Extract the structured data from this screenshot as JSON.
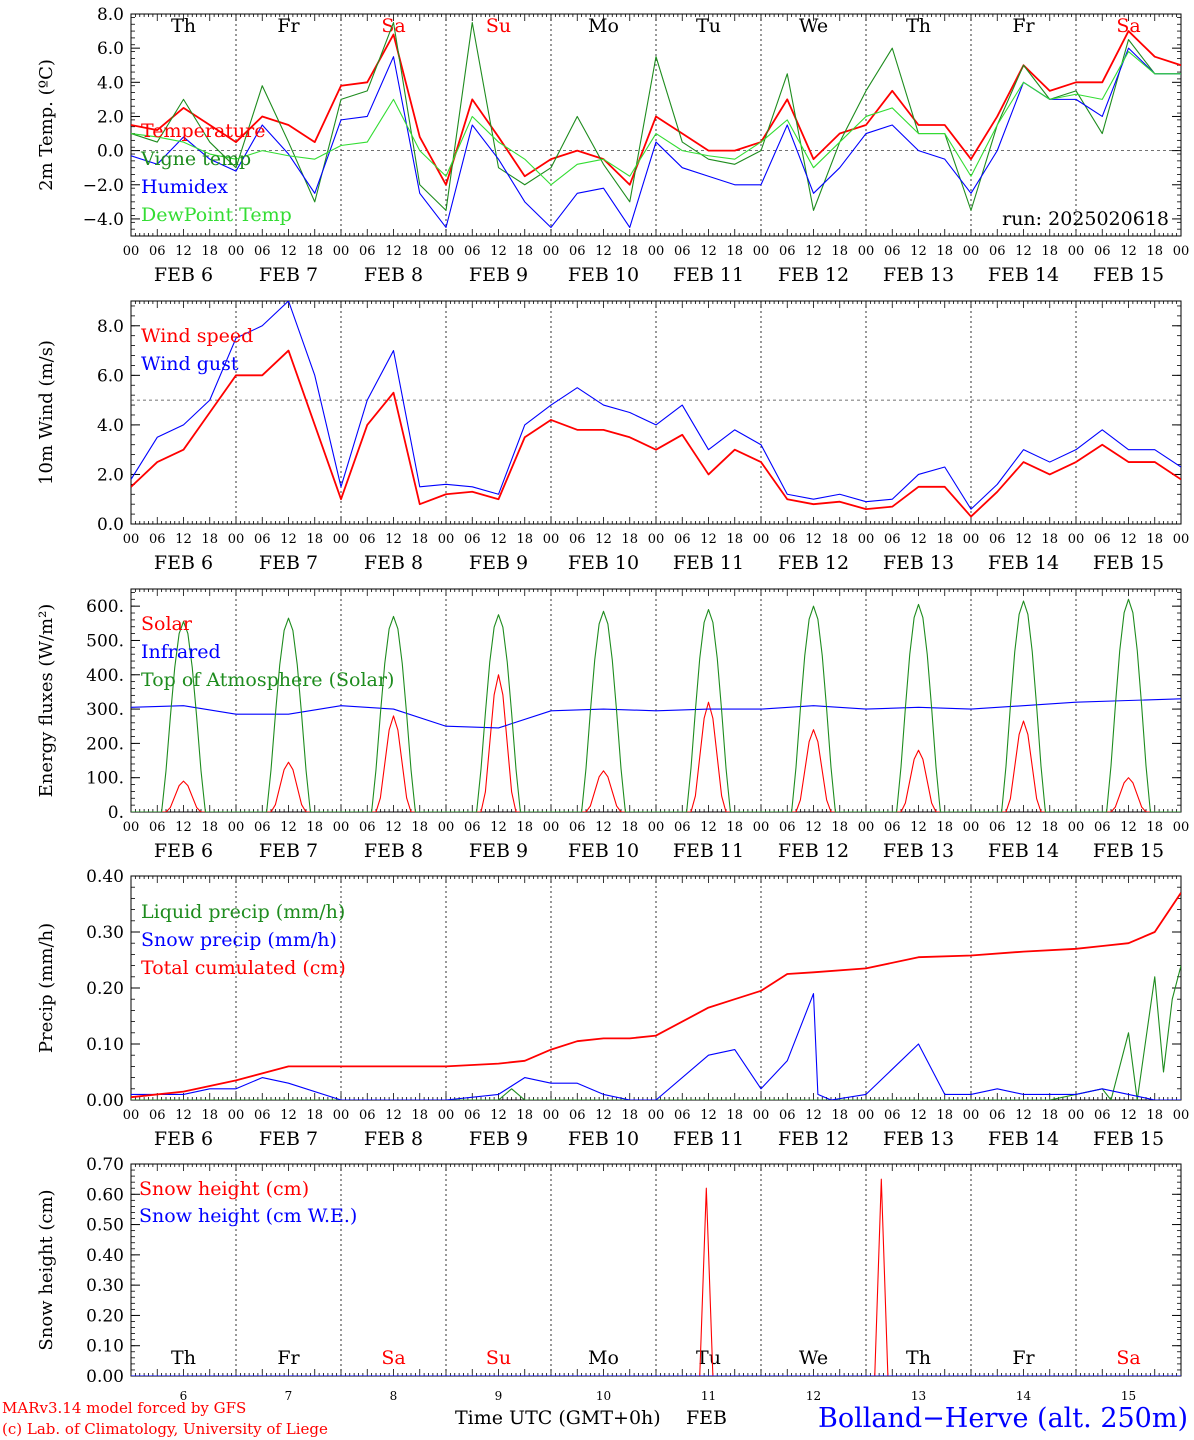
{
  "colors": {
    "red": "#ff0000",
    "green": "#1e8c1e",
    "blue": "#0000ff",
    "light_green": "#33dd33",
    "black": "#000000"
  },
  "days": {
    "top_names": [
      "Th",
      "Fr",
      "Sa",
      "Su",
      "Mo",
      "Tu",
      "We",
      "Th",
      "Fr",
      "Sa"
    ],
    "weekend_flags": [
      false,
      false,
      true,
      true,
      false,
      false,
      false,
      false,
      false,
      true
    ],
    "date_labels": [
      "FEB  6",
      "FEB  7",
      "FEB  8",
      "FEB  9",
      "FEB 10",
      "FEB 11",
      "FEB 12",
      "FEB 13",
      "FEB 14",
      "FEB 15"
    ],
    "day_numbers": [
      "6",
      "7",
      "8",
      "9",
      "10",
      "11",
      "12",
      "13",
      "14",
      "15"
    ],
    "hour_labels": [
      "00",
      "06",
      "12",
      "18"
    ],
    "final_hour_label": "00"
  },
  "footer": {
    "credit_line1": "MARv3.14 model forced by GFS",
    "credit_line2": "(c) Lab. of Climatology, University of Liege",
    "axis_title": "Time UTC (GMT+0h)",
    "month": "FEB",
    "station": "Bolland−Herve (alt. 250m)"
  },
  "chart_data": [
    {
      "type": "line",
      "ylabel": "2m Temp. (ºC)",
      "run_label": "run: 2025020618",
      "ylim": [
        -5,
        8
      ],
      "yticks": [
        8,
        6,
        4,
        2,
        0,
        -2,
        -4
      ],
      "ytick_labels": [
        "8.0",
        "6.0",
        "4.0",
        "2.0",
        "0.0",
        "−2.0",
        "−4.0"
      ],
      "ref_line": 0,
      "x_unit": "hours since FEB 6 00 UTC",
      "series": [
        {
          "name": "Temperature",
          "color": "red",
          "x": [
            0,
            6,
            12,
            18,
            24,
            30,
            36,
            42,
            48,
            54,
            60,
            66,
            72,
            78,
            84,
            90,
            96,
            102,
            108,
            114,
            120,
            126,
            132,
            138,
            144,
            150,
            156,
            162,
            168,
            174,
            180,
            186,
            192,
            198,
            204,
            210,
            216,
            222,
            228,
            234,
            240
          ],
          "values": [
            1.5,
            1.2,
            2.5,
            1.5,
            0.5,
            2.0,
            1.5,
            0.5,
            3.8,
            4.0,
            6.8,
            0.8,
            -2.0,
            3.0,
            0.8,
            -1.5,
            -0.5,
            0.0,
            -0.5,
            -2.0,
            2.0,
            1.0,
            0.0,
            0.0,
            0.5,
            3.0,
            -0.5,
            1.0,
            1.5,
            3.5,
            1.5,
            1.5,
            -0.5,
            2.0,
            5.0,
            3.5,
            4.0,
            4.0,
            7.0,
            5.5,
            5.0
          ]
        },
        {
          "name": "Vigne temp",
          "color": "green",
          "x": [
            0,
            6,
            12,
            18,
            24,
            30,
            36,
            42,
            48,
            54,
            60,
            66,
            72,
            78,
            84,
            90,
            96,
            102,
            108,
            114,
            120,
            126,
            132,
            138,
            144,
            150,
            156,
            162,
            168,
            174,
            180,
            186,
            192,
            198,
            204,
            210,
            216,
            222,
            228,
            234,
            240
          ],
          "values": [
            1.0,
            0.5,
            3.0,
            0.5,
            -1.0,
            3.8,
            0.5,
            -3.0,
            3.0,
            3.5,
            7.5,
            -2.0,
            -3.5,
            7.5,
            -1.0,
            -2.0,
            -1.0,
            2.0,
            -0.8,
            -3.0,
            5.5,
            0.5,
            -0.5,
            -0.8,
            0.0,
            4.5,
            -3.5,
            0.5,
            3.5,
            6.0,
            1.0,
            1.0,
            -3.5,
            1.5,
            5.0,
            3.0,
            3.5,
            1.0,
            6.5,
            4.5,
            4.5
          ]
        },
        {
          "name": "Humidex",
          "color": "blue",
          "x": [
            0,
            6,
            12,
            18,
            24,
            30,
            36,
            42,
            48,
            54,
            60,
            66,
            72,
            78,
            84,
            90,
            96,
            102,
            108,
            114,
            120,
            126,
            132,
            138,
            144,
            150,
            156,
            162,
            168,
            174,
            180,
            186,
            192,
            198,
            204,
            210,
            216,
            222,
            228,
            234,
            240
          ],
          "values": [
            -0.3,
            -0.8,
            0.8,
            -0.5,
            -1.2,
            1.5,
            -0.2,
            -2.5,
            1.8,
            2.0,
            5.5,
            -2.5,
            -4.5,
            1.5,
            -0.5,
            -3.0,
            -4.5,
            -2.5,
            -2.2,
            -4.5,
            0.5,
            -1.0,
            -1.5,
            -2.0,
            -2.0,
            1.5,
            -2.5,
            -1.0,
            1.0,
            1.5,
            0.0,
            -0.5,
            -2.5,
            0.0,
            4.0,
            3.0,
            3.0,
            2.0,
            6.0,
            4.5,
            4.5
          ]
        },
        {
          "name": "DewPoint Temp",
          "color": "light_green",
          "x": [
            0,
            6,
            12,
            18,
            24,
            30,
            36,
            42,
            48,
            54,
            60,
            66,
            72,
            78,
            84,
            90,
            96,
            102,
            108,
            114,
            120,
            126,
            132,
            138,
            144,
            150,
            156,
            162,
            168,
            174,
            180,
            186,
            192,
            198,
            204,
            210,
            216,
            222,
            228,
            234,
            240
          ],
          "values": [
            1.0,
            0.8,
            0.5,
            -0.2,
            -0.5,
            0.0,
            -0.3,
            -0.5,
            0.3,
            0.5,
            3.0,
            0.0,
            -1.5,
            2.0,
            0.5,
            -0.5,
            -2.0,
            -0.8,
            -0.5,
            -1.5,
            1.0,
            0.0,
            -0.3,
            -0.5,
            0.5,
            1.8,
            -1.0,
            0.5,
            2.0,
            2.5,
            1.0,
            1.0,
            -1.5,
            1.5,
            4.0,
            3.0,
            3.3,
            3.0,
            5.8,
            4.5,
            4.5
          ]
        }
      ]
    },
    {
      "type": "line",
      "ylabel": "10m Wind (m/s)",
      "ylim": [
        0,
        9
      ],
      "yticks": [
        8,
        6,
        4,
        2,
        0
      ],
      "ytick_labels": [
        "8.0",
        "6.0",
        "4.0",
        "2.0",
        "0.0"
      ],
      "ref_line": 5,
      "x_unit": "hours since FEB 6 00 UTC",
      "series": [
        {
          "name": "Wind speed",
          "color": "red",
          "x": [
            0,
            6,
            12,
            18,
            24,
            30,
            36,
            42,
            48,
            54,
            60,
            66,
            72,
            78,
            84,
            90,
            96,
            102,
            108,
            114,
            120,
            126,
            132,
            138,
            144,
            150,
            156,
            162,
            168,
            174,
            180,
            186,
            192,
            198,
            204,
            210,
            216,
            222,
            228,
            234,
            240
          ],
          "values": [
            1.5,
            2.5,
            3.0,
            4.5,
            6.0,
            6.0,
            7.0,
            4.0,
            1.0,
            4.0,
            5.3,
            0.8,
            1.2,
            1.3,
            1.0,
            3.5,
            4.2,
            3.8,
            3.8,
            3.5,
            3.0,
            3.6,
            2.0,
            3.0,
            2.5,
            1.0,
            0.8,
            0.9,
            0.6,
            0.7,
            1.5,
            1.5,
            0.3,
            1.3,
            2.5,
            2.0,
            2.5,
            3.2,
            2.5,
            2.5,
            1.8
          ]
        },
        {
          "name": "Wind gust",
          "color": "blue",
          "x": [
            0,
            6,
            12,
            18,
            24,
            30,
            36,
            42,
            48,
            54,
            60,
            66,
            72,
            78,
            84,
            90,
            96,
            102,
            108,
            114,
            120,
            126,
            132,
            138,
            144,
            150,
            156,
            162,
            168,
            174,
            180,
            186,
            192,
            198,
            204,
            210,
            216,
            222,
            228,
            234,
            240
          ],
          "values": [
            1.8,
            3.5,
            4.0,
            5.0,
            7.5,
            8.0,
            9.0,
            6.0,
            1.5,
            5.0,
            7.0,
            1.5,
            1.6,
            1.5,
            1.2,
            4.0,
            4.8,
            5.5,
            4.8,
            4.5,
            4.0,
            4.8,
            3.0,
            3.8,
            3.2,
            1.2,
            1.0,
            1.2,
            0.9,
            1.0,
            2.0,
            2.3,
            0.6,
            1.6,
            3.0,
            2.5,
            3.0,
            3.8,
            3.0,
            3.0,
            2.3
          ]
        }
      ]
    },
    {
      "type": "line",
      "ylabel": "Energy fluxes (W/m²)",
      "ylim": [
        0,
        650
      ],
      "yticks": [
        600,
        500,
        400,
        300,
        200,
        100,
        0
      ],
      "ytick_labels": [
        "600.",
        "500.",
        "400.",
        "300.",
        "200.",
        "100.",
        "0."
      ],
      "ref_line": null,
      "x_unit": "hours since FEB 6 00 UTC",
      "series": [
        {
          "name": "Solar",
          "color": "red",
          "peaks": [
            90,
            145,
            280,
            400,
            120,
            320,
            240,
            180,
            265,
            100
          ]
        },
        {
          "name": "Infrared",
          "color": "blue",
          "x": [
            0,
            12,
            24,
            36,
            48,
            60,
            72,
            84,
            96,
            108,
            120,
            132,
            144,
            156,
            168,
            180,
            192,
            204,
            216,
            228,
            240
          ],
          "values": [
            305,
            310,
            285,
            285,
            310,
            300,
            250,
            245,
            295,
            300,
            295,
            300,
            300,
            310,
            300,
            305,
            300,
            310,
            320,
            325,
            330
          ]
        },
        {
          "name": "Top of Atmosphere (Solar)",
          "color": "green",
          "peaks": [
            555,
            565,
            570,
            575,
            585,
            590,
            600,
            605,
            615,
            620
          ]
        }
      ]
    },
    {
      "type": "line",
      "ylabel": "Precip (mm/h)",
      "ylim": [
        0,
        0.4
      ],
      "yticks": [
        0.4,
        0.3,
        0.2,
        0.1,
        0.0
      ],
      "ytick_labels": [
        "0.40",
        "0.30",
        "0.20",
        "0.10",
        "0.00"
      ],
      "ref_line": null,
      "x_unit": "hours since FEB 6 00 UTC",
      "series": [
        {
          "name": "Liquid precip (mm/h)",
          "color": "green",
          "x": [
            0,
            60,
            84,
            87,
            90,
            120,
            140,
            155,
            160,
            180,
            210,
            222,
            224,
            228,
            230,
            234,
            236,
            238,
            240
          ],
          "values": [
            0,
            0,
            0,
            0.02,
            0,
            0,
            0,
            0,
            0,
            0,
            0,
            0.02,
            0,
            0.12,
            0,
            0.22,
            0.05,
            0.18,
            0.24
          ]
        },
        {
          "name": "Snow precip (mm/h)",
          "color": "blue",
          "x": [
            0,
            6,
            12,
            18,
            24,
            30,
            36,
            48,
            72,
            84,
            90,
            96,
            102,
            108,
            114,
            120,
            132,
            138,
            144,
            150,
            156,
            157,
            160,
            168,
            180,
            186,
            192,
            198,
            204,
            210,
            216,
            222,
            228,
            234,
            240
          ],
          "values": [
            0.01,
            0.01,
            0.01,
            0.02,
            0.02,
            0.04,
            0.03,
            0,
            0,
            0.01,
            0.04,
            0.03,
            0.03,
            0.01,
            0,
            0,
            0.08,
            0.09,
            0.02,
            0.07,
            0.19,
            0.01,
            0,
            0.01,
            0.1,
            0.01,
            0.01,
            0.02,
            0.01,
            0.01,
            0.01,
            0.02,
            0.01,
            0,
            0
          ]
        },
        {
          "name": "Total cumulated (cm)",
          "color": "red",
          "x": [
            0,
            12,
            24,
            36,
            48,
            60,
            72,
            84,
            90,
            96,
            102,
            108,
            114,
            120,
            132,
            138,
            144,
            150,
            156,
            168,
            180,
            192,
            204,
            216,
            222,
            228,
            234,
            240
          ],
          "values": [
            0.005,
            0.015,
            0.035,
            0.06,
            0.06,
            0.06,
            0.06,
            0.065,
            0.07,
            0.09,
            0.105,
            0.11,
            0.11,
            0.115,
            0.165,
            0.18,
            0.195,
            0.225,
            0.228,
            0.235,
            0.255,
            0.258,
            0.265,
            0.27,
            0.275,
            0.28,
            0.3,
            0.37
          ]
        }
      ]
    },
    {
      "type": "line",
      "ylabel": "Snow height (cm)",
      "ylim": [
        0,
        0.7
      ],
      "yticks": [
        0.7,
        0.6,
        0.5,
        0.4,
        0.3,
        0.2,
        0.1,
        0.0
      ],
      "ytick_labels": [
        "0.70",
        "0.60",
        "0.50",
        "0.40",
        "0.30",
        "0.20",
        "0.10",
        "0.00"
      ],
      "ref_line": null,
      "x_unit": "hours since FEB 6 00 UTC",
      "series": [
        {
          "name": "Snow height (cm)",
          "color": "red",
          "x": [
            0,
            130,
            131.5,
            133,
            170,
            171.5,
            173,
            240
          ],
          "values": [
            0,
            0,
            0.62,
            0,
            0,
            0.65,
            0,
            0
          ]
        },
        {
          "name": "Snow height (cm W.E.)",
          "color": "blue",
          "x": [
            0,
            240
          ],
          "values": [
            0,
            0
          ]
        }
      ]
    }
  ]
}
